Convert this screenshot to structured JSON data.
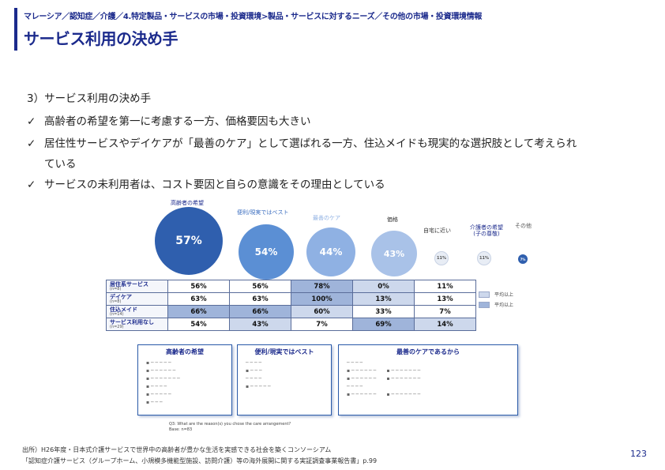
{
  "header": {
    "breadcrumb": "マレーシア／認知症／介護／4.特定製品・サービスの市場・投資環境>製品・サービスに対するニーズ／その他の市場・投資環境情報",
    "title": "サービス利用の決め手"
  },
  "body": {
    "section_heading": "3）サービス利用の決め手",
    "check_mark": "✓",
    "bullets": [
      "高齢者の希望を第一に考慮する一方、価格要因も大きい",
      "居住性サービスやデイケアが「最善のケア」として選ばれる一方、住込メイドも現実的な選択肢として考えられ",
      "サービスの未利用者は、コスト要因と自らの意識をその理由としている"
    ],
    "bullet2_continuation": "ている"
  },
  "figure": {
    "circles": [
      {
        "label": "高齢者の希望",
        "value": "57%",
        "color": "#2f5fae"
      },
      {
        "label": "便利/現実ではベスト",
        "value": "54%",
        "color": "#5b8fd4"
      },
      {
        "label": "最善のケア",
        "value": "44%",
        "color": "#8fb1e3"
      },
      {
        "label": "価格",
        "value": "43%",
        "color": "#a9c2e8"
      },
      {
        "label": "自宅に近い",
        "value": "11%",
        "color": "#e8edf5"
      },
      {
        "label": "介護者の希望 (子の尊敬)",
        "value": "11%",
        "color": "#e8edf5"
      },
      {
        "label": "その他",
        "value": "7%",
        "color": "#2f5fae"
      }
    ],
    "table": {
      "rows": [
        {
          "label": "居住系サービス",
          "n": "(n=8)",
          "cells": [
            "56%",
            "56%",
            "78%",
            "0%",
            "11%"
          ]
        },
        {
          "label": "デイケア",
          "n": "(n=8)",
          "cells": [
            "63%",
            "63%",
            "100%",
            "13%",
            "13%"
          ]
        },
        {
          "label": "住込メイド",
          "n": "(n=14)",
          "cells": [
            "66%",
            "66%",
            "60%",
            "33%",
            "7%"
          ]
        },
        {
          "label": "サービス利用なし",
          "n": "(n=29)",
          "cells": [
            "54%",
            "43%",
            "7%",
            "69%",
            "14%"
          ]
        }
      ]
    },
    "legend": [
      "平均以上",
      "平均以上"
    ],
    "reason_boxes": [
      {
        "title": "高齢者の希望"
      },
      {
        "title": "便利/現実ではベスト"
      },
      {
        "title": "最善のケアであるから"
      }
    ],
    "note": {
      "line1": "Q3: What are the reason(s) you chose the care arrangement?",
      "line2": "Base: n=83"
    }
  },
  "footer": {
    "source_line1": "出所）H26年度・日本式介護サービスで世界中の高齢者が豊かな生活を実感できる社会を築くコンソーシアム",
    "source_line2": "「認知症介護サービス（グループホーム、小規模多機能型施設、訪問介護）等の海外展開に関する実証調査事業報告書」p.99",
    "page_number": "123"
  }
}
